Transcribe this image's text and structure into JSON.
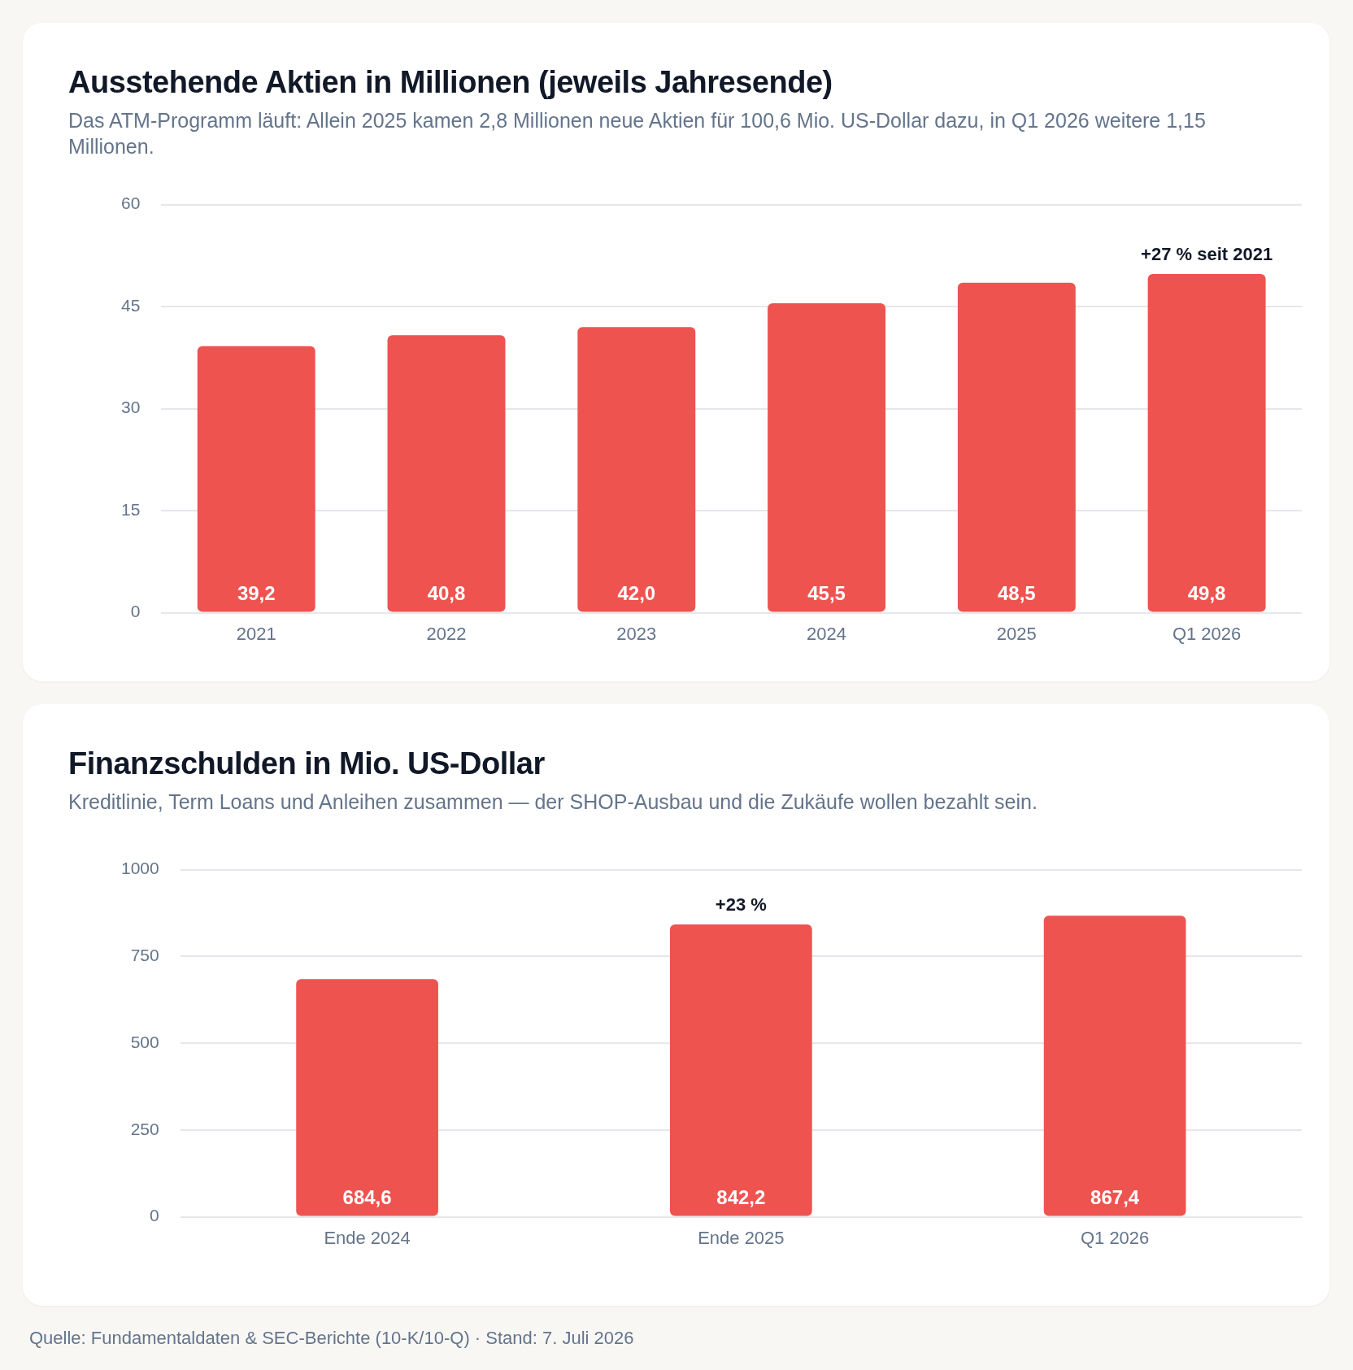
{
  "chart_data": [
    {
      "type": "bar",
      "title": "Ausstehende Aktien in Millionen (jeweils Jahresende)",
      "subtitle": "Das ATM-Programm läuft: Allein 2025 kamen 2,8 Millionen neue Aktien für 100,6 Mio. US-Dollar dazu, in Q1 2026 weitere 1,15 Millionen.",
      "categories": [
        "2021",
        "2022",
        "2023",
        "2024",
        "2025",
        "Q1 2026"
      ],
      "values": [
        39.2,
        40.8,
        42.0,
        45.5,
        48.5,
        49.8
      ],
      "value_labels": [
        "39,2",
        "40,8",
        "42,0",
        "45,5",
        "48,5",
        "49,8"
      ],
      "color": "#ef5350",
      "ylim": [
        0,
        60
      ],
      "yticks": [
        0,
        15,
        30,
        45,
        60
      ],
      "grid": "y",
      "annotations": [
        {
          "text": "+27 % seit 2021",
          "x": "Q1 2026",
          "y": 49.8
        }
      ]
    },
    {
      "type": "bar",
      "title": "Finanzschulden in Mio. US-Dollar",
      "subtitle": "Kreditlinie, Term Loans und Anleihen zusammen — der SHOP-Ausbau und die Zukäufe wollen bezahlt sein.",
      "categories": [
        "Ende 2024",
        "Ende 2025",
        "Q1 2026"
      ],
      "values": [
        684.6,
        842.2,
        867.4
      ],
      "value_labels": [
        "684,6",
        "842,2",
        "867,4"
      ],
      "color": "#ef5350",
      "ylim": [
        0,
        1000
      ],
      "yticks": [
        0,
        250,
        500,
        750,
        1000
      ],
      "grid": "y",
      "annotations": [
        {
          "text": "+23 %",
          "x": "Ende 2025",
          "y": 842.2
        },
        "Quelle: Fundamentaldaten & SEC-Berichte (10-K/10-Q) · Stand: 7. Juli 2026"
      ]
    }
  ]
}
